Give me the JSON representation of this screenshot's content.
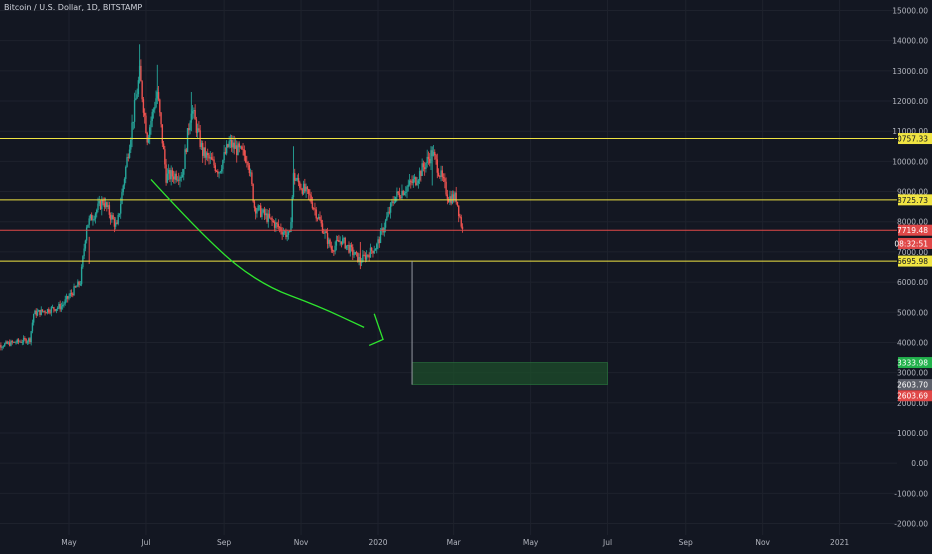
{
  "header": {
    "symbol": "Bitcoin / U.S. Dollar, 1D, BITSTAMP"
  },
  "colors": {
    "background": "#131722",
    "grid": "#1e222d",
    "up_candle": "#26a69a",
    "down_candle": "#ef5350",
    "horizontal_line": "#f0e442",
    "red_line": "#e04848",
    "arrow": "#2ee52e",
    "target_box": "#1d4d2b",
    "axis_text": "#b2b5be"
  },
  "chart_data": {
    "type": "candlestick",
    "title": "Bitcoin / U.S. Dollar, 1D, BITSTAMP",
    "ylim": [
      -2000,
      15000
    ],
    "y_ticks": [
      15000,
      14000,
      13000,
      12000,
      11000,
      10000,
      9000,
      8000,
      7000,
      6000,
      5000,
      4000,
      3000,
      2000,
      1000,
      0,
      -1000,
      -2000
    ],
    "y_tick_labels": [
      "15000.00",
      "14000.00",
      "13000.00",
      "12000.00",
      "11000.00",
      "10000.00",
      "9000.00",
      "8000.00",
      "7000.00",
      "6000.00",
      "5000.00",
      "4000.00",
      "3000.00",
      "2000.00",
      "1000.00",
      "0.00",
      "-1000.00",
      "-2000.00"
    ],
    "x_ticks": [
      {
        "label": "May",
        "date": "2019-05-01"
      },
      {
        "label": "Jul",
        "date": "2019-07-01"
      },
      {
        "label": "Sep",
        "date": "2019-09-01"
      },
      {
        "label": "Nov",
        "date": "2019-11-01"
      },
      {
        "label": "2020",
        "date": "2020-01-01"
      },
      {
        "label": "Mar",
        "date": "2020-03-01"
      },
      {
        "label": "May",
        "date": "2020-05-01"
      },
      {
        "label": "Jul",
        "date": "2020-07-01"
      },
      {
        "label": "Sep",
        "date": "2020-09-01"
      },
      {
        "label": "Nov",
        "date": "2020-11-01"
      },
      {
        "label": "2021",
        "date": "2021-01-01"
      }
    ],
    "price_path": [
      {
        "date": "2019-03-01",
        "price": 3850
      },
      {
        "date": "2019-03-31",
        "price": 4100
      },
      {
        "date": "2019-04-03",
        "price": 4950
      },
      {
        "date": "2019-04-25",
        "price": 5200
      },
      {
        "date": "2019-05-10",
        "price": 6000
      },
      {
        "date": "2019-05-15",
        "price": 7900
      },
      {
        "date": "2019-05-28",
        "price": 8700
      },
      {
        "date": "2019-06-08",
        "price": 7800
      },
      {
        "date": "2019-06-26",
        "price": 12900
      },
      {
        "date": "2019-07-02",
        "price": 10800
      },
      {
        "date": "2019-07-10",
        "price": 12300
      },
      {
        "date": "2019-07-17",
        "price": 9500
      },
      {
        "date": "2019-07-30",
        "price": 9600
      },
      {
        "date": "2019-08-06",
        "price": 11800
      },
      {
        "date": "2019-08-15",
        "price": 10300
      },
      {
        "date": "2019-08-28",
        "price": 9700
      },
      {
        "date": "2019-09-05",
        "price": 10600
      },
      {
        "date": "2019-09-20",
        "price": 10100
      },
      {
        "date": "2019-09-25",
        "price": 8500
      },
      {
        "date": "2019-10-23",
        "price": 7500
      },
      {
        "date": "2019-10-26",
        "price": 9500
      },
      {
        "date": "2019-11-08",
        "price": 8800
      },
      {
        "date": "2019-11-25",
        "price": 7100
      },
      {
        "date": "2019-12-03",
        "price": 7400
      },
      {
        "date": "2019-12-18",
        "price": 6700
      },
      {
        "date": "2019-12-31",
        "price": 7200
      },
      {
        "date": "2020-01-14",
        "price": 8800
      },
      {
        "date": "2020-01-31",
        "price": 9400
      },
      {
        "date": "2020-02-13",
        "price": 10300
      },
      {
        "date": "2020-02-26",
        "price": 8800
      },
      {
        "date": "2020-03-03",
        "price": 8800
      },
      {
        "date": "2020-03-08",
        "price": 7710
      }
    ],
    "high_wicks": [
      {
        "date": "2019-06-26",
        "price": 13880
      },
      {
        "date": "2019-07-10",
        "price": 13200
      },
      {
        "date": "2019-08-06",
        "price": 12300
      },
      {
        "date": "2019-10-26",
        "price": 10500
      },
      {
        "date": "2020-02-13",
        "price": 10500
      }
    ],
    "low_wicks": [
      {
        "date": "2019-05-17",
        "price": 6600
      },
      {
        "date": "2019-12-18",
        "price": 6430
      }
    ],
    "horizontal_levels": [
      {
        "price": 10757.33,
        "label": "10757.33",
        "color": "#f0e442"
      },
      {
        "price": 8725.73,
        "label": "8725.73",
        "color": "#f0e442"
      },
      {
        "price": 7719.48,
        "label": "7719.48",
        "color": "#e04848"
      },
      {
        "price": 6695.98,
        "label": "6695.98",
        "color": "#f0e442"
      }
    ],
    "last_price": 7719.48,
    "countdown_label": "08:32:51",
    "target_box": {
      "start_date": "2020-01-28",
      "end_date": "2020-07-01",
      "top": 3333.98,
      "bottom": 2603.7,
      "top_label": "3333.98",
      "bottom_label": "2603.70",
      "stop_label": "2603.69"
    },
    "measure_line": {
      "date": "2020-01-28",
      "from": 6695.98,
      "to": 2603.7
    },
    "arrow_path": [
      {
        "date": "2019-07-05",
        "price": 9400
      },
      {
        "date": "2019-08-20",
        "price": 7300
      },
      {
        "date": "2019-10-01",
        "price": 5900
      },
      {
        "date": "2019-11-15",
        "price": 5200
      },
      {
        "date": "2019-12-21",
        "price": 4500
      }
    ],
    "arrow_head": [
      {
        "date": "2019-12-29",
        "price": 4950
      },
      {
        "date": "2020-01-05",
        "price": 4100
      },
      {
        "date": "2019-12-25",
        "price": 3900
      }
    ]
  }
}
